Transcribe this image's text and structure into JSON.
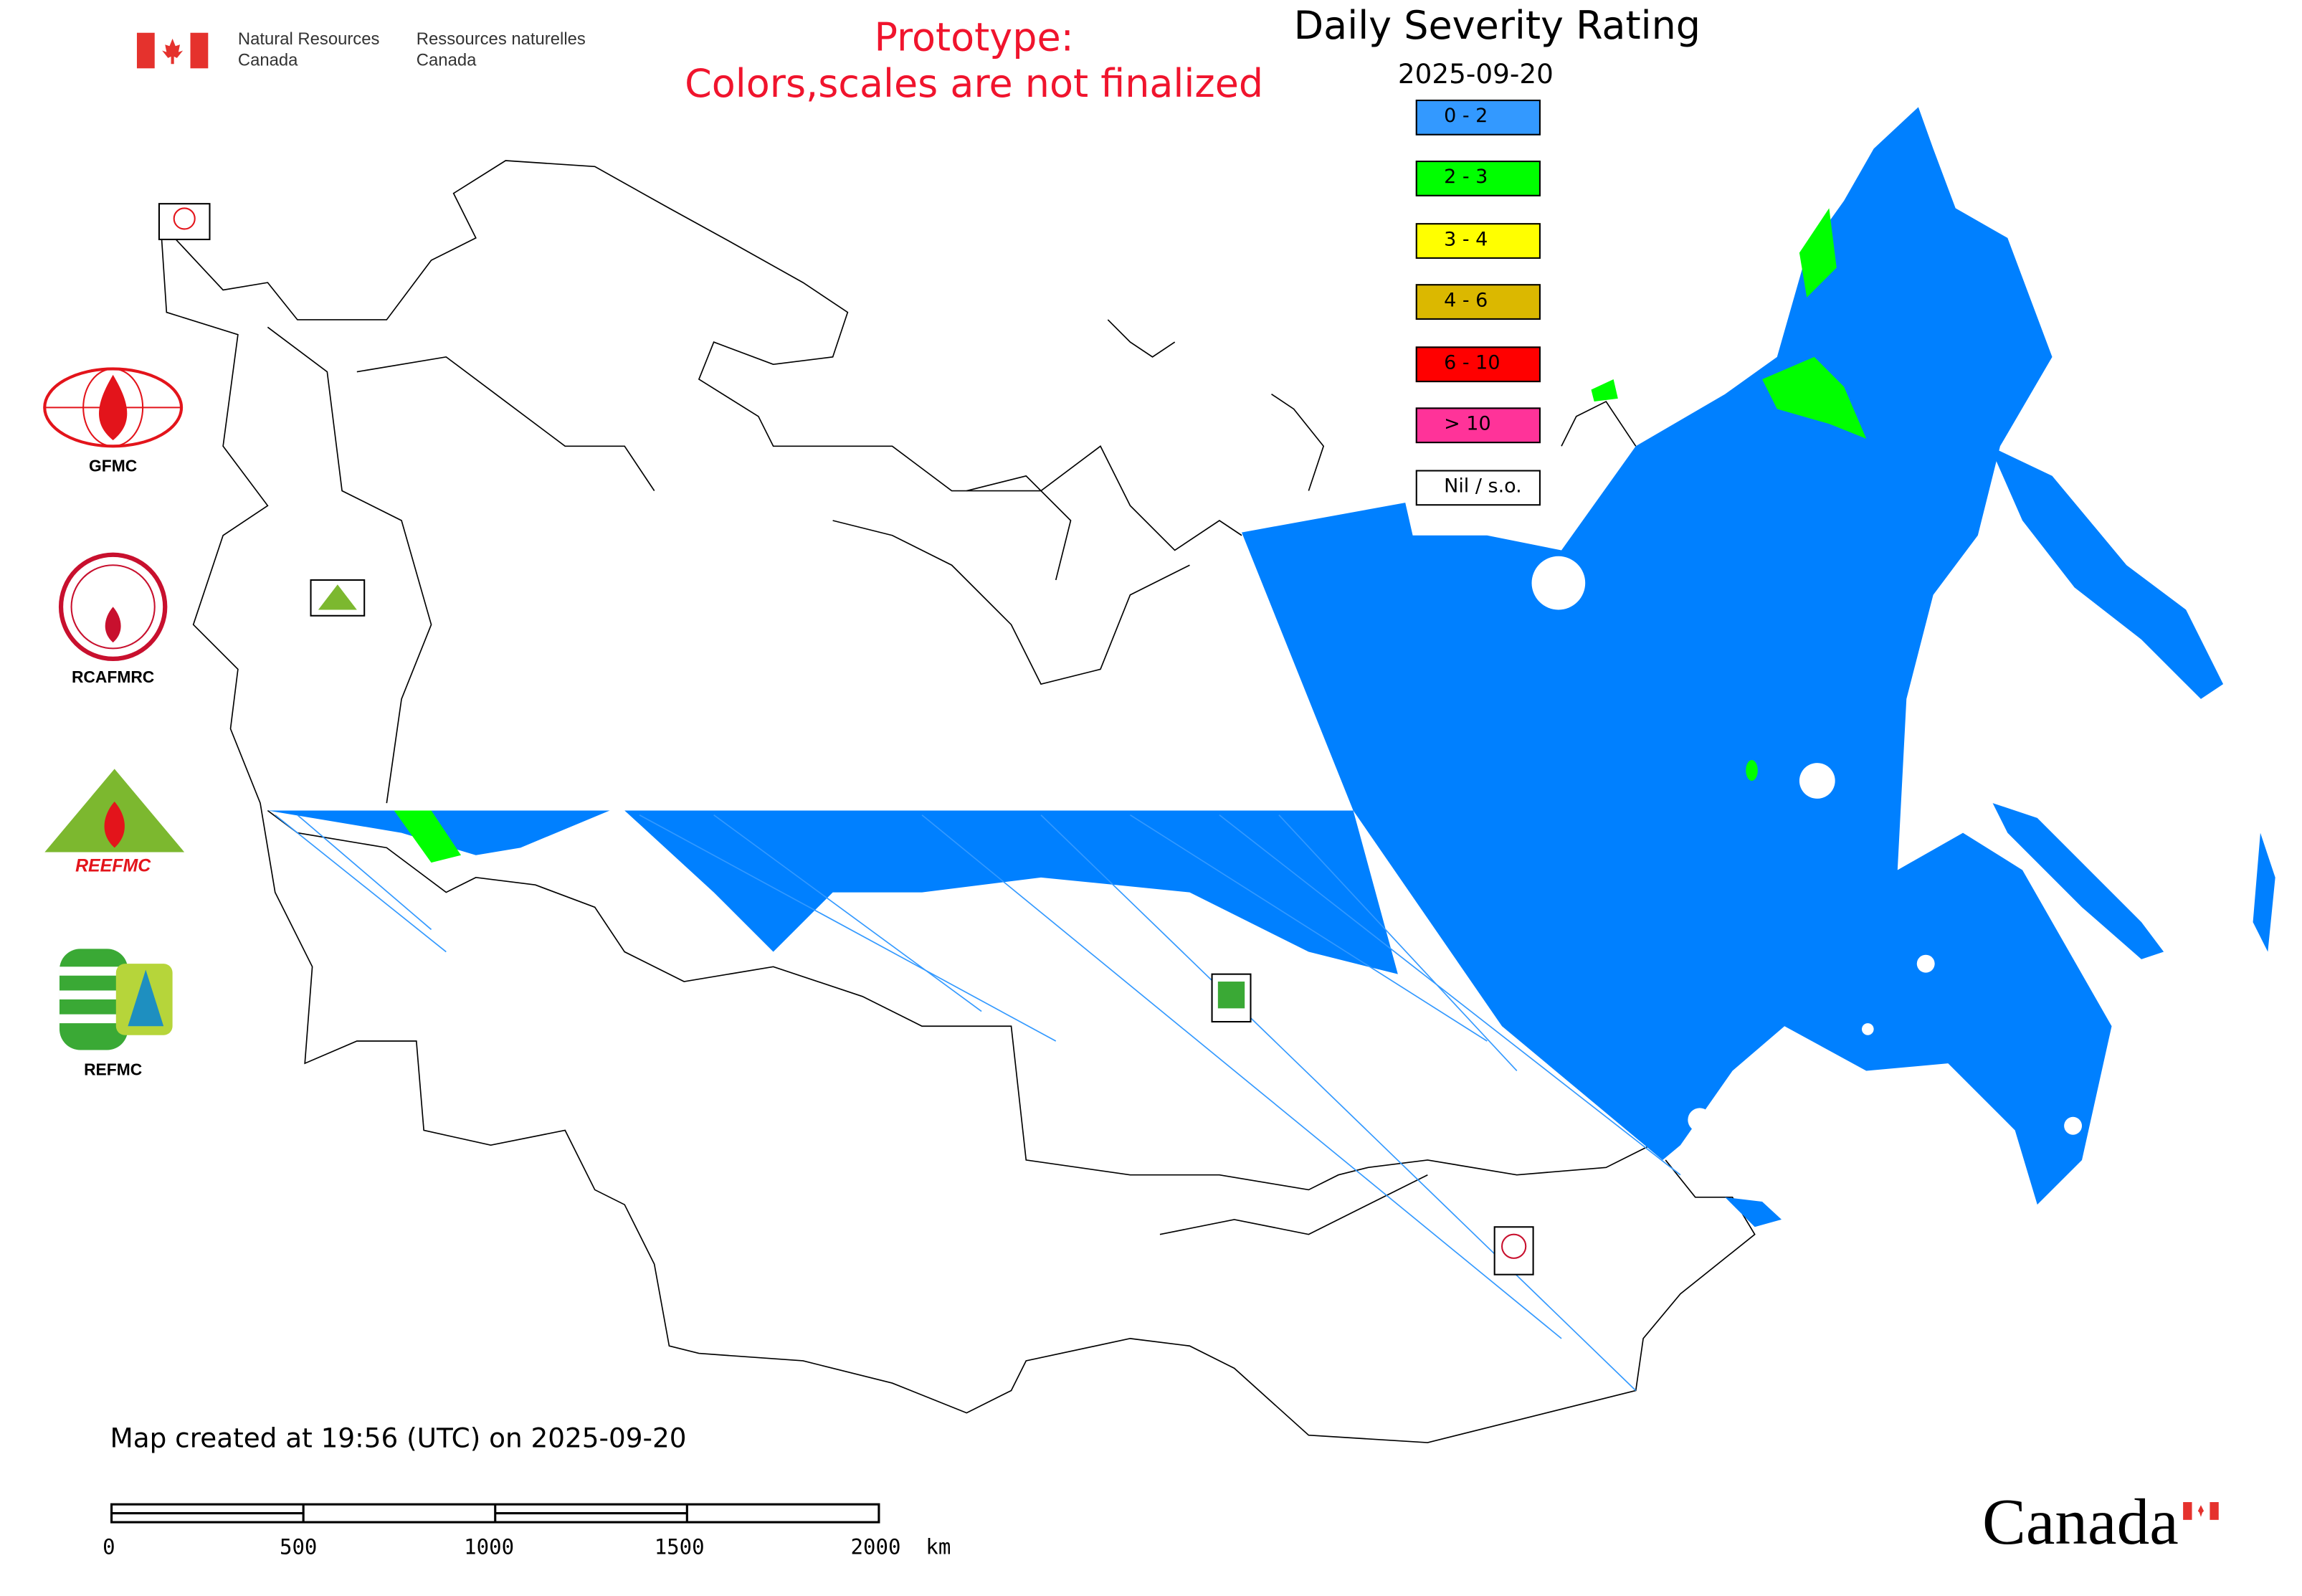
{
  "header": {
    "agency_en": [
      "Natural Resources",
      "Canada"
    ],
    "agency_fr": [
      "Ressources naturelles",
      "Canada"
    ],
    "prototype_notice": [
      "Prototype:",
      "Colors,scales are not finalized"
    ]
  },
  "map": {
    "title": "Daily Severity Rating",
    "date": "2025-09-20",
    "legend": [
      {
        "label": "0 - 2",
        "color": "#3399ff"
      },
      {
        "label": "2 - 3",
        "color": "#00ff00"
      },
      {
        "label": "3 - 4",
        "color": "#ffff00"
      },
      {
        "label": "4 - 6",
        "color": "#dbb800"
      },
      {
        "label": "6 - 10",
        "color": "#ff0000"
      },
      {
        "label": "> 10",
        "color": "#ff3399"
      },
      {
        "label": "Nil / s.o.",
        "color": "#ffffff"
      }
    ],
    "fill_color": "#0080ff",
    "created": "Map created at 19:56 (UTC) on 2025-09-20",
    "scale_ticks": [
      "0",
      "500",
      "1000",
      "1500",
      "2000  km"
    ]
  },
  "logos": [
    {
      "label": "GFMC",
      "color": "#e3141b"
    },
    {
      "label": "RCAFMRC",
      "color": "#c8102e"
    },
    {
      "label": "REEFMC",
      "color": "#7cb82f"
    },
    {
      "label": "REFMC",
      "color": "#3aa935"
    }
  ],
  "map_markers": [
    "GFMC",
    "REEFMC",
    "REFMC",
    "RCAFMRC"
  ],
  "footer": {
    "wordmark": "Canada"
  }
}
